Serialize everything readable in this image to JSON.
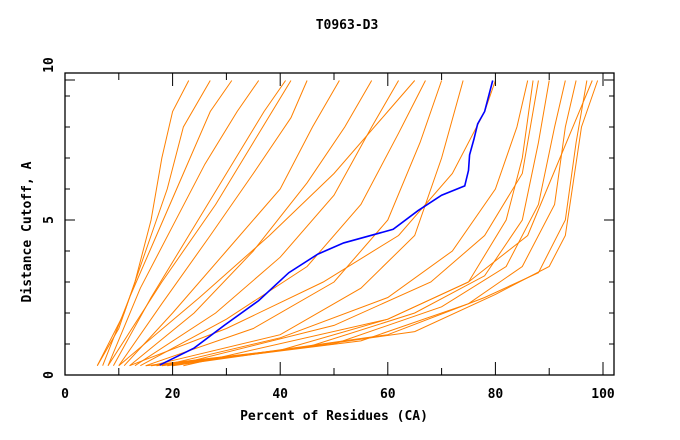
{
  "chart_data": {
    "type": "line",
    "title": "T0963-D3",
    "xlabel": "Percent of Residues (CA)",
    "ylabel": "Distance Cutoff, A",
    "xlim": [
      0,
      100
    ],
    "ylim": [
      0,
      10
    ],
    "x_ticks": [
      "0",
      "20",
      "40",
      "60",
      "80",
      "100"
    ],
    "y_ticks": [
      "0",
      "5",
      "10"
    ],
    "grid": false,
    "colors": {
      "highlight": "#0000ff",
      "others": "#ff8000"
    },
    "highlight_series": {
      "points": [
        [
          17.6,
          0.32
        ],
        [
          24,
          0.87
        ],
        [
          29.6,
          1.6
        ],
        [
          36,
          2.4
        ],
        [
          41.6,
          3.3
        ],
        [
          47,
          3.9
        ],
        [
          51.8,
          4.26
        ],
        [
          61,
          4.7
        ],
        [
          65.6,
          5.3
        ],
        [
          70,
          5.8
        ],
        [
          74.3,
          6.1
        ],
        [
          75,
          6.6
        ],
        [
          75.2,
          7.1
        ],
        [
          76,
          7.6
        ],
        [
          76.7,
          8.1
        ],
        [
          78,
          8.5
        ],
        [
          79.5,
          9.5
        ]
      ]
    },
    "series": [
      {
        "points": [
          [
            6,
            0.3
          ],
          [
            10,
            1.5
          ],
          [
            13,
            3
          ],
          [
            16,
            5
          ],
          [
            18,
            7
          ],
          [
            20,
            8.5
          ],
          [
            23,
            9.5
          ]
        ]
      },
      {
        "points": [
          [
            6,
            0.3
          ],
          [
            11,
            2
          ],
          [
            15,
            4
          ],
          [
            19,
            6
          ],
          [
            22,
            8
          ],
          [
            27,
            9.5
          ]
        ]
      },
      {
        "points": [
          [
            7,
            0.3
          ],
          [
            12,
            2.5
          ],
          [
            17,
            4.5
          ],
          [
            22,
            6.5
          ],
          [
            27,
            8.5
          ],
          [
            31,
            9.5
          ]
        ]
      },
      {
        "points": [
          [
            8,
            0.3
          ],
          [
            14,
            2.8
          ],
          [
            20,
            4.8
          ],
          [
            26,
            6.8
          ],
          [
            32,
            8.5
          ],
          [
            36,
            9.5
          ]
        ]
      },
      {
        "points": [
          [
            9,
            0.3
          ],
          [
            16,
            2.5
          ],
          [
            23,
            4.5
          ],
          [
            30,
            6.5
          ],
          [
            37,
            8.5
          ],
          [
            41,
            9.5
          ]
        ]
      },
      {
        "points": [
          [
            10,
            0.3
          ],
          [
            18,
            2.3
          ],
          [
            27,
            4.5
          ],
          [
            35,
            6.5
          ],
          [
            42,
            8.3
          ],
          [
            45,
            9.5
          ]
        ]
      },
      {
        "points": [
          [
            11,
            0.3
          ],
          [
            20,
            2
          ],
          [
            30,
            4
          ],
          [
            40,
            6
          ],
          [
            46,
            8
          ],
          [
            51,
            9.5
          ]
        ]
      },
      {
        "points": [
          [
            12,
            0.3
          ],
          [
            24,
            2
          ],
          [
            35,
            4
          ],
          [
            45,
            6.2
          ],
          [
            52,
            8
          ],
          [
            57,
            9.5
          ]
        ]
      },
      {
        "points": [
          [
            13,
            0.3
          ],
          [
            28,
            2
          ],
          [
            40,
            3.8
          ],
          [
            50,
            5.8
          ],
          [
            57,
            8
          ],
          [
            62,
            9.5
          ]
        ]
      },
      {
        "points": [
          [
            14,
            0.3
          ],
          [
            30,
            1.8
          ],
          [
            45,
            3.5
          ],
          [
            55,
            5.5
          ],
          [
            62,
            7.8
          ],
          [
            67,
            9.5
          ]
        ]
      },
      {
        "points": [
          [
            15,
            0.3
          ],
          [
            35,
            1.5
          ],
          [
            50,
            3
          ],
          [
            60,
            5
          ],
          [
            66,
            7.5
          ],
          [
            70,
            9.5
          ]
        ]
      },
      {
        "points": [
          [
            16,
            0.3
          ],
          [
            40,
            1.3
          ],
          [
            55,
            2.8
          ],
          [
            65,
            4.5
          ],
          [
            70,
            7
          ],
          [
            74,
            9.5
          ]
        ]
      },
      {
        "points": [
          [
            15,
            0.3
          ],
          [
            40,
            0.8
          ],
          [
            60,
            1.8
          ],
          [
            75,
            3
          ],
          [
            82,
            5
          ],
          [
            85,
            7
          ],
          [
            87,
            9.5
          ]
        ]
      },
      {
        "points": [
          [
            16,
            0.3
          ],
          [
            45,
            0.9
          ],
          [
            65,
            2
          ],
          [
            78,
            3.2
          ],
          [
            85,
            5
          ],
          [
            88,
            7.5
          ],
          [
            90,
            9.5
          ]
        ]
      },
      {
        "points": [
          [
            17,
            0.3
          ],
          [
            50,
            1
          ],
          [
            70,
            2.2
          ],
          [
            82,
            3.5
          ],
          [
            88,
            5.5
          ],
          [
            91,
            8
          ],
          [
            93,
            9.5
          ]
        ]
      },
      {
        "points": [
          [
            18,
            0.3
          ],
          [
            55,
            1.1
          ],
          [
            75,
            2.3
          ],
          [
            85,
            3.5
          ],
          [
            91,
            5.5
          ],
          [
            93,
            8
          ],
          [
            95,
            9.5
          ]
        ]
      },
      {
        "points": [
          [
            19,
            0.3
          ],
          [
            60,
            1.3
          ],
          [
            78,
            2.5
          ],
          [
            88,
            3.3
          ],
          [
            93,
            5
          ],
          [
            95,
            7.5
          ],
          [
            97,
            9.5
          ]
        ]
      },
      {
        "points": [
          [
            20,
            0.3
          ],
          [
            65,
            1.4
          ],
          [
            80,
            2.6
          ],
          [
            90,
            3.5
          ],
          [
            93,
            4.5
          ],
          [
            96,
            8
          ],
          [
            99,
            9.5
          ]
        ]
      },
      {
        "points": [
          [
            18,
            0.3
          ],
          [
            40,
            1.2
          ],
          [
            60,
            2.5
          ],
          [
            72,
            4
          ],
          [
            80,
            6
          ],
          [
            84,
            8
          ],
          [
            86,
            9.5
          ]
        ]
      },
      {
        "points": [
          [
            12,
            0.3
          ],
          [
            30,
            1.5
          ],
          [
            48,
            3
          ],
          [
            62,
            4.5
          ],
          [
            72,
            6.5
          ],
          [
            78,
            8.5
          ],
          [
            80,
            9.5
          ]
        ]
      },
      {
        "points": [
          [
            20,
            0.3
          ],
          [
            50,
            1.6
          ],
          [
            68,
            3
          ],
          [
            78,
            4.5
          ],
          [
            85,
            6.5
          ],
          [
            88,
            9.5
          ]
        ]
      },
      {
        "points": [
          [
            10,
            0.3
          ],
          [
            25,
            2.5
          ],
          [
            38,
            4.5
          ],
          [
            50,
            6.5
          ],
          [
            60,
            8.5
          ],
          [
            65,
            9.5
          ]
        ]
      },
      {
        "points": [
          [
            8,
            0.3
          ],
          [
            18,
            3
          ],
          [
            28,
            5.5
          ],
          [
            35,
            7.5
          ],
          [
            42,
            9.5
          ]
        ]
      },
      {
        "points": [
          [
            22,
            0.3
          ],
          [
            60,
            1.8
          ],
          [
            75,
            3
          ],
          [
            86,
            4.5
          ],
          [
            92,
            7
          ],
          [
            98,
            9.5
          ]
        ]
      }
    ]
  }
}
